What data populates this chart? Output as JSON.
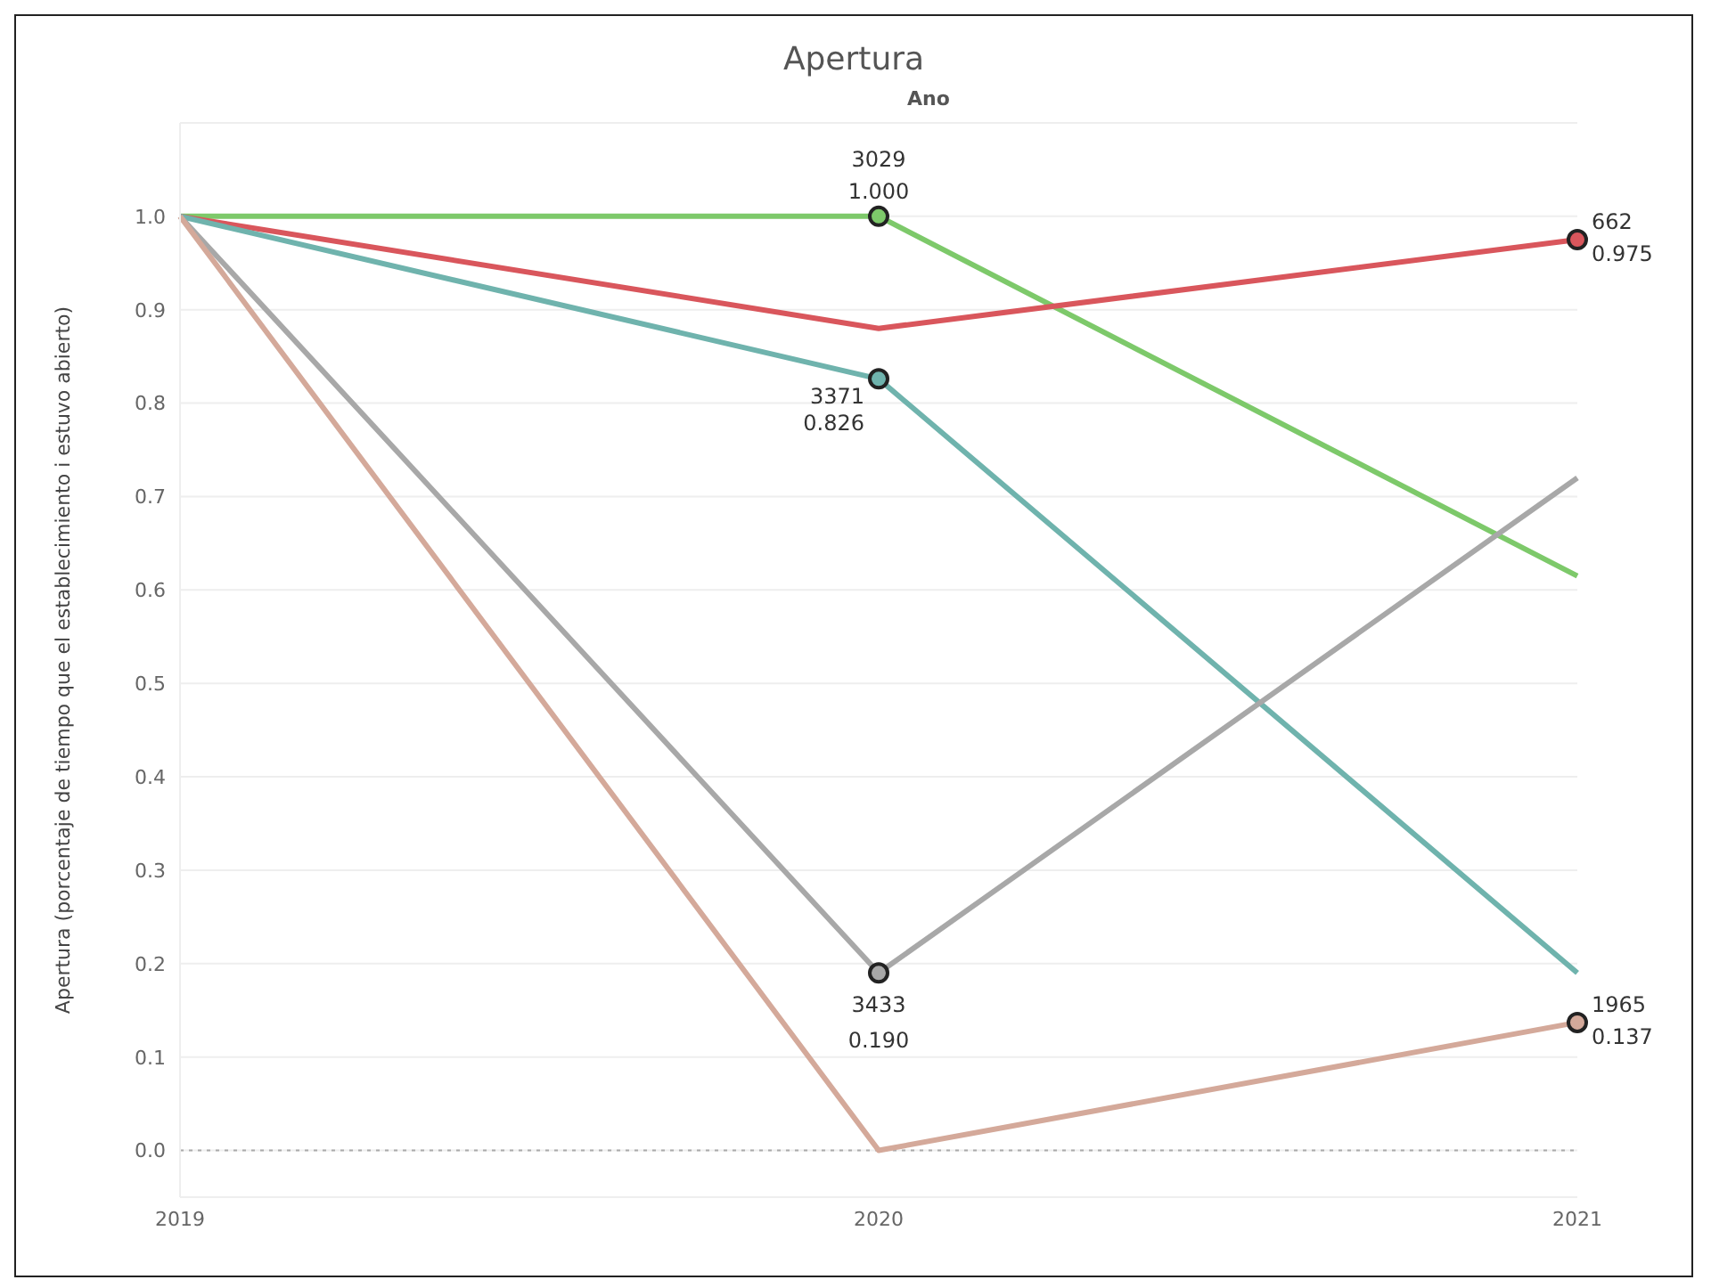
{
  "chart_data": {
    "type": "line",
    "title": "Apertura",
    "xlabel": "Ano",
    "ylabel": "Apertura (porcentaje de tiempo que el establecimiento i estuvo abierto)",
    "categories": [
      "2019",
      "2020",
      "2021"
    ],
    "series": [
      {
        "name": "3029",
        "color": "#7dc96a",
        "values": [
          1,
          1.0,
          0.615
        ],
        "value_labels": [
          null,
          "1.000",
          null
        ]
      },
      {
        "name": "662",
        "color": "#d9565c",
        "values": [
          1,
          0.88,
          0.975
        ],
        "value_labels": [
          null,
          null,
          "0.975"
        ]
      },
      {
        "name": "3371",
        "color": "#6fb3ad",
        "values": [
          1,
          0.826,
          0.19
        ],
        "value_labels": [
          null,
          "0.826",
          null
        ]
      },
      {
        "name": "3433",
        "color": "#a8a8a8",
        "values": [
          1,
          0.19,
          0.72
        ],
        "value_labels": [
          null,
          "0.190",
          null
        ]
      },
      {
        "name": "1965",
        "color": "#d4a99a",
        "values": [
          1,
          0,
          0.137
        ],
        "value_labels": [
          null,
          null,
          "0.137"
        ]
      }
    ],
    "ylim": [
      -0.05,
      1.1
    ],
    "yticks": [
      {
        "value": 0,
        "label": "0.0"
      },
      {
        "value": 0.1,
        "label": "0.1"
      },
      {
        "value": 0.2,
        "label": "0.2"
      },
      {
        "value": 0.3,
        "label": "0.3"
      },
      {
        "value": 0.4,
        "label": "0.4"
      },
      {
        "value": 0.5,
        "label": "0.5"
      },
      {
        "value": 0.6,
        "label": "0.6"
      },
      {
        "value": 0.7,
        "label": "0.7"
      },
      {
        "value": 0.8,
        "label": "0.8"
      },
      {
        "value": 0.9,
        "label": "0.9"
      },
      {
        "value": 1,
        "label": "1.0"
      }
    ],
    "ref_lines": [
      {
        "axis": "y",
        "value": 0,
        "color": "#aaaaaa",
        "line_style": "dotted"
      }
    ],
    "grid": "y",
    "legend": false,
    "line_style": "solid"
  }
}
